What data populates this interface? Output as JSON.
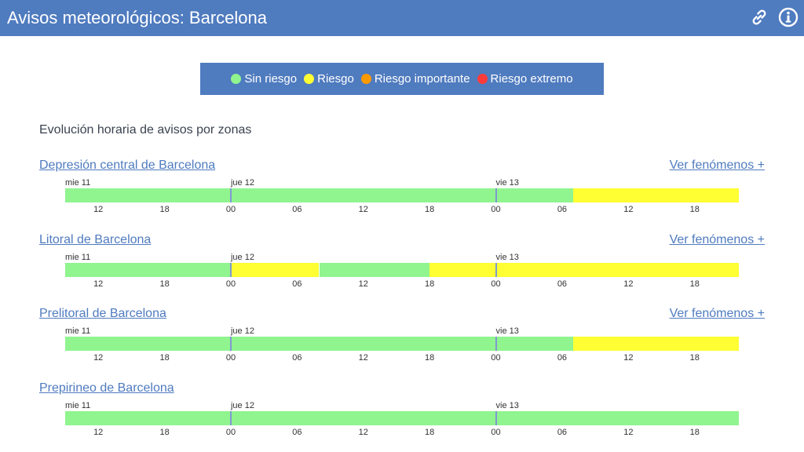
{
  "header": {
    "title": "Avisos meteorológicos: Barcelona"
  },
  "legend": [
    {
      "label": "Sin riesgo",
      "color": "#90f48f"
    },
    {
      "label": "Riesgo",
      "color": "#ffff33"
    },
    {
      "label": "Riesgo importante",
      "color": "#ff9900"
    },
    {
      "label": "Riesgo extremo",
      "color": "#ff3b3b"
    }
  ],
  "section_title": "Evolución horaria de avisos por zonas",
  "timeline": {
    "start_hour": 9,
    "hours_total": 61,
    "days": [
      {
        "label": "mie 11",
        "start_hour": 9
      },
      {
        "label": "jue 12",
        "start_hour": 24
      },
      {
        "label": "vie 13",
        "start_hour": 48
      }
    ],
    "ticks": [
      {
        "hour": 12,
        "label": "12"
      },
      {
        "hour": 18,
        "label": "18"
      },
      {
        "hour": 24,
        "label": "00"
      },
      {
        "hour": 30,
        "label": "06"
      },
      {
        "hour": 36,
        "label": "12"
      },
      {
        "hour": 42,
        "label": "18"
      },
      {
        "hour": 48,
        "label": "00"
      },
      {
        "hour": 54,
        "label": "06"
      },
      {
        "hour": 60,
        "label": "12"
      },
      {
        "hour": 66,
        "label": "18"
      }
    ]
  },
  "zones": [
    {
      "name": "Depresión central de Barcelona",
      "more_label": "Ver fenómenos +",
      "segments": [
        {
          "from": 9,
          "to": 55,
          "level": "Sin riesgo"
        },
        {
          "from": 55,
          "to": 70,
          "level": "Riesgo"
        }
      ]
    },
    {
      "name": "Litoral de Barcelona",
      "more_label": "Ver fenómenos +",
      "segments": [
        {
          "from": 9,
          "to": 24,
          "level": "Sin riesgo"
        },
        {
          "from": 24,
          "to": 32,
          "level": "Riesgo"
        },
        {
          "from": 32,
          "to": 42,
          "level": "Sin riesgo"
        },
        {
          "from": 42,
          "to": 70,
          "level": "Riesgo"
        }
      ]
    },
    {
      "name": "Prelitoral de Barcelona",
      "more_label": "Ver fenómenos +",
      "segments": [
        {
          "from": 9,
          "to": 55,
          "level": "Sin riesgo"
        },
        {
          "from": 55,
          "to": 70,
          "level": "Riesgo"
        }
      ]
    },
    {
      "name": "Prepirineo de Barcelona",
      "more_label": "",
      "segments": [
        {
          "from": 9,
          "to": 70,
          "level": "Sin riesgo"
        }
      ]
    }
  ],
  "icons": {
    "link": "link-icon",
    "info": "info-icon"
  }
}
